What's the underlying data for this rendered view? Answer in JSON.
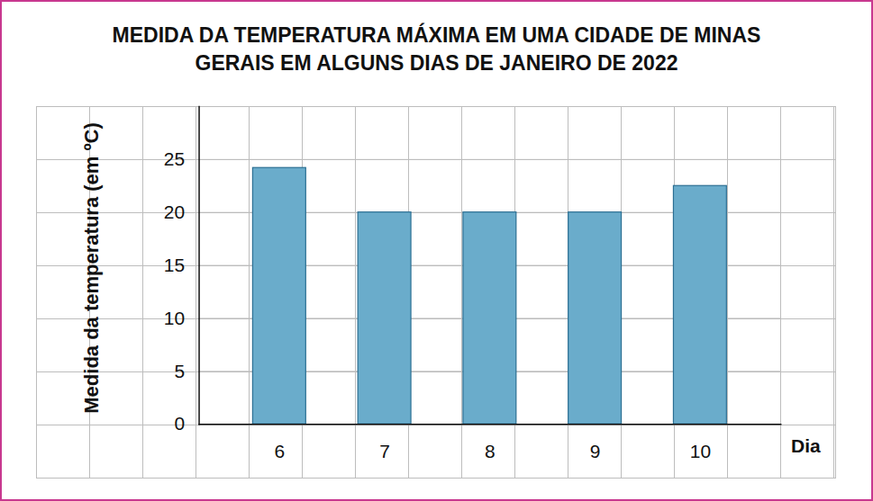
{
  "chart_data": {
    "type": "bar",
    "title": "MEDIDA DA TEMPERATURA MÁXIMA EM UMA CIDADE DE MINAS GERAIS EM ALGUNS DIAS DE JANEIRO DE 2022",
    "x_label": "Dia",
    "y_label": "Medida da temperatura (em ºC)",
    "categories": [
      "6",
      "7",
      "8",
      "9",
      "10"
    ],
    "values": [
      24.2,
      20,
      20,
      20,
      22.5
    ],
    "color": "#6aaccb",
    "ylim": [
      0,
      30
    ],
    "yticks": [
      0,
      5,
      10,
      15,
      20,
      25
    ],
    "grid": true
  }
}
